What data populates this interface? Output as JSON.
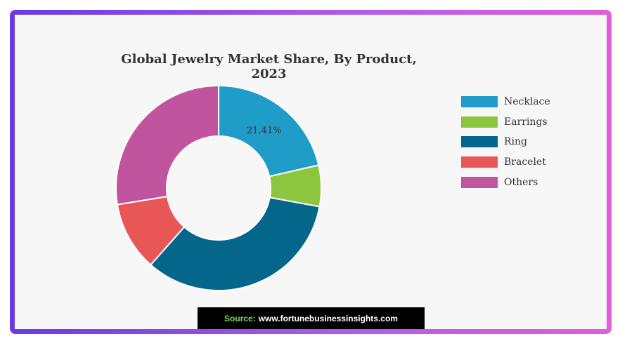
{
  "chart_data": {
    "type": "pie",
    "style": "donut",
    "title": "Global Jewelry Market Share, By Product, 2023",
    "categories": [
      "Necklace",
      "Earrings",
      "Ring",
      "Bracelet",
      "Others"
    ],
    "values": [
      21.41,
      6.5,
      33.6,
      10.9,
      27.59
    ],
    "data_labels": [
      "21.41%",
      "",
      "",
      "",
      ""
    ],
    "colors": [
      "#1f9dc8",
      "#8cc63f",
      "#04668a",
      "#e85656",
      "#c1549f"
    ],
    "legend_position": "right"
  },
  "footer": {
    "source_label": "Source:",
    "source_url": "www.fortunebusinessinsights.com"
  }
}
